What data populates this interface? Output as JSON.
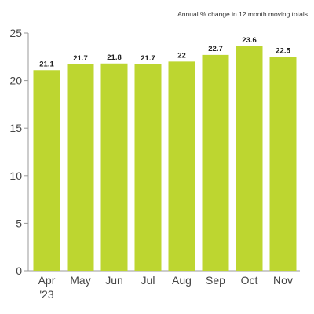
{
  "chart_data": {
    "type": "bar",
    "title": "",
    "subtitle": "Annual % change in 12 month moving totals",
    "xlabel": "",
    "ylabel": "",
    "categories": [
      "Apr",
      "May",
      "Jun",
      "Jul",
      "Aug",
      "Sep",
      "Oct",
      "Nov"
    ],
    "category_sublabels": [
      "'23",
      "",
      "",
      "",
      "",
      "",
      "",
      ""
    ],
    "values": [
      21.1,
      21.7,
      21.8,
      21.7,
      22,
      22.7,
      23.6,
      22.5
    ],
    "data_labels": [
      "21.1",
      "21.7",
      "21.8",
      "21.7",
      "22",
      "22.7",
      "23.6",
      "22.5"
    ],
    "ylim": [
      0,
      25
    ],
    "yticks": [
      "0",
      "5",
      "10",
      "15",
      "20",
      "25"
    ],
    "grid": false,
    "legend": "none",
    "bar_color": "#bdd630",
    "axis_color": "#999999"
  }
}
